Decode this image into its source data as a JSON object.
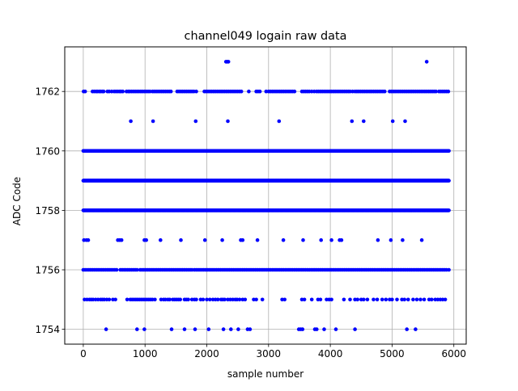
{
  "chart_data": {
    "type": "scatter",
    "title": "channel049 logain raw data",
    "xlabel": "sample number",
    "ylabel": "ADC Code",
    "xlim": [
      -300,
      6200
    ],
    "ylim": [
      1753.5,
      1763.5
    ],
    "xticks": [
      0,
      1000,
      2000,
      3000,
      4000,
      5000,
      6000
    ],
    "yticks": [
      1754,
      1756,
      1758,
      1760,
      1762
    ],
    "grid": true,
    "marker_color": "#0000ff",
    "series": [
      {
        "x_range": [
          0,
          5920
        ],
        "points_note_levels": [
          1754,
          1755,
          1756,
          1757,
          1758,
          1759,
          1760,
          1761,
          1762,
          1763
        ],
        "dense_levels": {
          "1758": [
            [
              0,
              5920
            ]
          ],
          "1759": [
            [
              0,
              5920
            ]
          ],
          "1760": [
            [
              0,
              5920
            ]
          ]
        },
        "sparse_levels": {
          "1763": [
            2310,
            2330,
            2350,
            5560
          ],
          "1762": [
            5,
            30,
            150,
            180,
            210,
            230,
            260,
            280,
            310,
            330,
            390,
            420,
            460,
            500,
            530,
            560,
            590,
            610,
            640,
            700,
            730,
            750,
            780,
            810,
            840,
            870,
            900,
            930,
            960,
            990,
            1020,
            1050,
            1080,
            1120,
            1150,
            1180,
            1210,
            1240,
            1270,
            1300,
            1330,
            1360,
            1390,
            1420,
            1520,
            1550,
            1580,
            1610,
            1640,
            1670,
            1700,
            1730,
            1760,
            1790,
            1830,
            1960,
            1990,
            2020,
            2050,
            2080,
            2110,
            2140,
            2170,
            2200,
            2230,
            2260,
            2290,
            2320,
            2350,
            2380,
            2410,
            2440,
            2470,
            2500,
            2530,
            2560,
            2680,
            2800,
            2830,
            2860,
            2960,
            3000,
            3030,
            3060,
            3090,
            3120,
            3150,
            3180,
            3210,
            3240,
            3270,
            3300,
            3330,
            3360,
            3390,
            3420,
            3540,
            3570,
            3600,
            3630,
            3660,
            3700,
            3740,
            3780,
            3810,
            3840,
            3870,
            3900,
            3930,
            3960,
            3990,
            4020,
            4050,
            4080,
            4110,
            4140,
            4170,
            4200,
            4230,
            4260,
            4290,
            4320,
            4360,
            4400,
            4430,
            4460,
            4490,
            4520,
            4550,
            4580,
            4610,
            4640,
            4670,
            4700,
            4730,
            4760,
            4790,
            4820,
            4850,
            4880,
            4960,
            4990,
            5020,
            5050,
            5080,
            5110,
            5140,
            5170,
            5200,
            5230,
            5260,
            5290,
            5320,
            5350,
            5380,
            5410,
            5440,
            5470,
            5500,
            5530,
            5560,
            5590,
            5620,
            5650,
            5680,
            5710,
            5760,
            5790,
            5820,
            5850,
            5880,
            5910
          ],
          "1761": [
            770,
            1130,
            1820,
            2340,
            3170,
            4350,
            4540,
            5010,
            5210
          ],
          "1757": [
            10,
            50,
            80,
            560,
            590,
            620,
            990,
            1020,
            1250,
            1580,
            1970,
            2250,
            2550,
            2580,
            2820,
            3240,
            3560,
            3850,
            4020,
            4150,
            4180,
            4770,
            4980,
            5170,
            5480
          ],
          "1756": [
            0,
            30,
            60,
            90,
            120,
            150,
            180,
            210,
            240,
            270,
            300,
            330,
            360,
            390,
            420,
            450,
            480,
            510,
            540,
            600,
            630,
            660,
            690,
            720,
            750,
            780,
            810,
            840,
            870,
            920,
            950,
            980,
            1010,
            1040,
            1070,
            1100,
            1130,
            1160,
            1190,
            1220,
            1250,
            1280,
            1310,
            1340,
            1370,
            1400,
            1430,
            1460,
            1490,
            1520,
            1550,
            1580,
            1610,
            1640,
            1670,
            1700,
            1730,
            1760,
            1800,
            1830,
            1860,
            1890,
            1920,
            1950,
            1980,
            2010,
            2040,
            2070,
            2100,
            2130,
            2160,
            2190,
            2220,
            2250,
            2280,
            2310,
            2340,
            2370,
            2400,
            2430,
            2460,
            2490,
            2520,
            2550,
            2580,
            2610,
            2640,
            2670,
            2700,
            2730,
            2760,
            2790,
            2820,
            2850,
            2880,
            2910,
            2940,
            2970,
            3000,
            3030,
            3060,
            3090,
            3120,
            3150,
            3180,
            3210,
            3240,
            3270,
            3300,
            3330,
            3360,
            3390,
            3420,
            3450,
            3480,
            3510,
            3540,
            3570,
            3600,
            3630,
            3660,
            3690,
            3720,
            3750,
            3780,
            3810,
            3840,
            3870,
            3900,
            3930,
            3960,
            3990,
            4020,
            4050,
            4080,
            4110,
            4140,
            4170,
            4200,
            4230,
            4260,
            4290,
            4320,
            4350,
            4380,
            4410,
            4440,
            4470,
            4500,
            4530,
            4560,
            4590,
            4620,
            4650,
            4680,
            4710,
            4740,
            4770,
            4800,
            4830,
            4860,
            4890,
            4920,
            4950,
            4980,
            5010,
            5040,
            5070,
            5100,
            5130,
            5160,
            5190,
            5220,
            5250,
            5280,
            5310,
            5340,
            5370,
            5400,
            5430,
            5460,
            5490,
            5520,
            5550,
            5580,
            5610,
            5640,
            5670,
            5700,
            5730,
            5760,
            5790,
            5820,
            5850,
            5880,
            5920
          ],
          "1755": [
            20,
            60,
            100,
            130,
            160,
            200,
            240,
            280,
            310,
            340,
            380,
            420,
            480,
            520,
            710,
            760,
            790,
            820,
            850,
            880,
            910,
            940,
            970,
            1000,
            1030,
            1060,
            1090,
            1120,
            1160,
            1260,
            1300,
            1330,
            1370,
            1400,
            1450,
            1480,
            1510,
            1540,
            1570,
            1640,
            1670,
            1700,
            1760,
            1800,
            1830,
            1900,
            1940,
            2000,
            2050,
            2100,
            2140,
            2180,
            2230,
            2260,
            2290,
            2340,
            2380,
            2420,
            2460,
            2490,
            2530,
            2580,
            2620,
            2760,
            2800,
            2900,
            3220,
            3260,
            3540,
            3580,
            3700,
            3800,
            3840,
            3940,
            3980,
            4020,
            4220,
            4320,
            4400,
            4440,
            4500,
            4540,
            4600,
            4700,
            4760,
            4840,
            4900,
            4960,
            5000,
            5080,
            5160,
            5200,
            5260,
            5340,
            5400,
            5460,
            5520,
            5600,
            5640,
            5700,
            5740,
            5780,
            5820,
            5860
          ],
          "1754": [
            370,
            870,
            990,
            1430,
            1640,
            1810,
            2030,
            2270,
            2390,
            2510,
            2660,
            2700,
            3490,
            3520,
            3550,
            3750,
            3780,
            3900,
            4090,
            4400,
            5240,
            5380
          ]
        }
      }
    ]
  }
}
